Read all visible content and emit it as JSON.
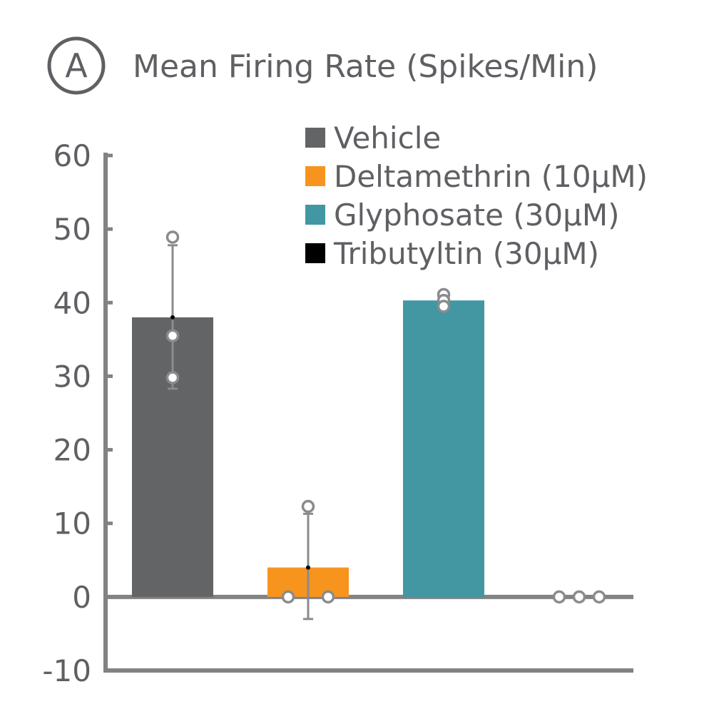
{
  "panel_label": "A",
  "chart_data": {
    "type": "bar",
    "title": "Mean Firing Rate (Spikes/Min)",
    "xlabel": "",
    "ylabel": "",
    "ylim": [
      -10,
      60
    ],
    "y_ticks": [
      60,
      50,
      40,
      30,
      20,
      10,
      0,
      -10
    ],
    "grid": false,
    "legend_position": "top-right",
    "categories": [
      "Vehicle",
      "Deltamethrin (10μM)",
      "Glyphosate (30μM)",
      "Tributyltin (30μM)"
    ],
    "series": [
      {
        "values": [
          38,
          4,
          40.3,
          0
        ],
        "colors": [
          "#636466",
          "#f7941d",
          "#4297a3",
          "#000000"
        ],
        "error_bars": [
          {
            "low": 28.3,
            "high": 47.8
          },
          {
            "low": -3.0,
            "high": 11.3
          },
          null,
          null
        ],
        "points": [
          [
            48.9,
            35.5,
            29.8
          ],
          [
            12.3,
            0,
            0
          ],
          [
            41.1,
            40.3,
            39.5
          ],
          [
            0,
            0,
            0
          ]
        ]
      }
    ]
  }
}
